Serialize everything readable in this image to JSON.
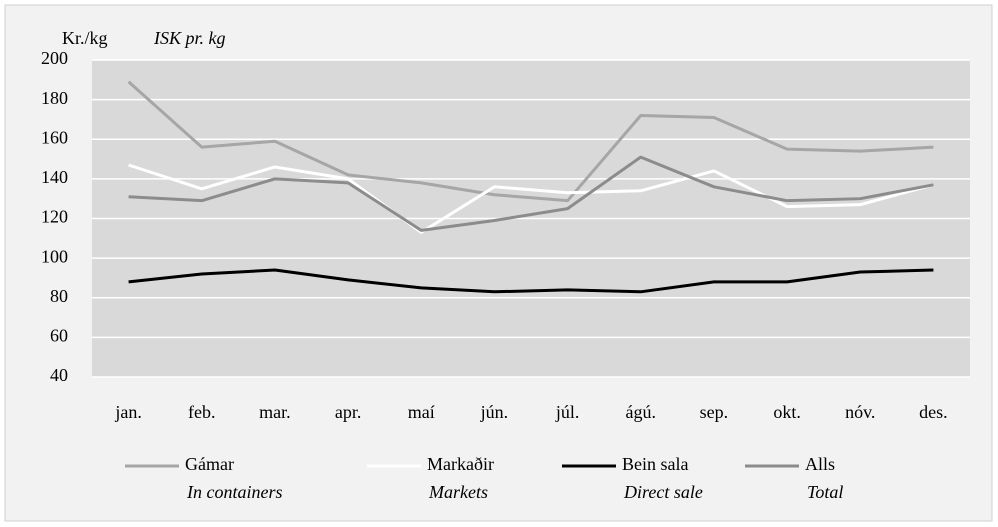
{
  "chart_data": {
    "type": "line",
    "ylabel": "Kr./kg",
    "ylabel_en": "ISK pr. kg",
    "categories": [
      "jan.",
      "feb.",
      "mar.",
      "apr.",
      "maí",
      "jún.",
      "júl.",
      "ágú.",
      "sep.",
      "okt.",
      "nóv.",
      "des."
    ],
    "series": [
      {
        "name": "Gámar",
        "name_en": "In containers",
        "color": "#a6a6a6",
        "values": [
          189,
          156,
          159,
          142,
          138,
          132,
          129,
          172,
          171,
          155,
          154,
          156
        ]
      },
      {
        "name": "Markaðir",
        "name_en": "Markets",
        "color": "#ffffff",
        "values": [
          147,
          135,
          146,
          140,
          113,
          136,
          133,
          134,
          144,
          126,
          127,
          137
        ]
      },
      {
        "name": "Bein sala",
        "name_en": "Direct sale",
        "color": "#000000",
        "values": [
          88,
          92,
          94,
          89,
          85,
          83,
          84,
          83,
          88,
          88,
          93,
          94
        ]
      },
      {
        "name": "Alls",
        "name_en": "Total",
        "color": "#8c8c8c",
        "values": [
          131,
          129,
          140,
          138,
          114,
          119,
          125,
          151,
          136,
          129,
          130,
          137
        ]
      }
    ],
    "ylim": [
      40,
      200
    ],
    "yticks": [
      40,
      60,
      80,
      100,
      120,
      140,
      160,
      180,
      200
    ],
    "grid": true,
    "legend": "bottom"
  }
}
